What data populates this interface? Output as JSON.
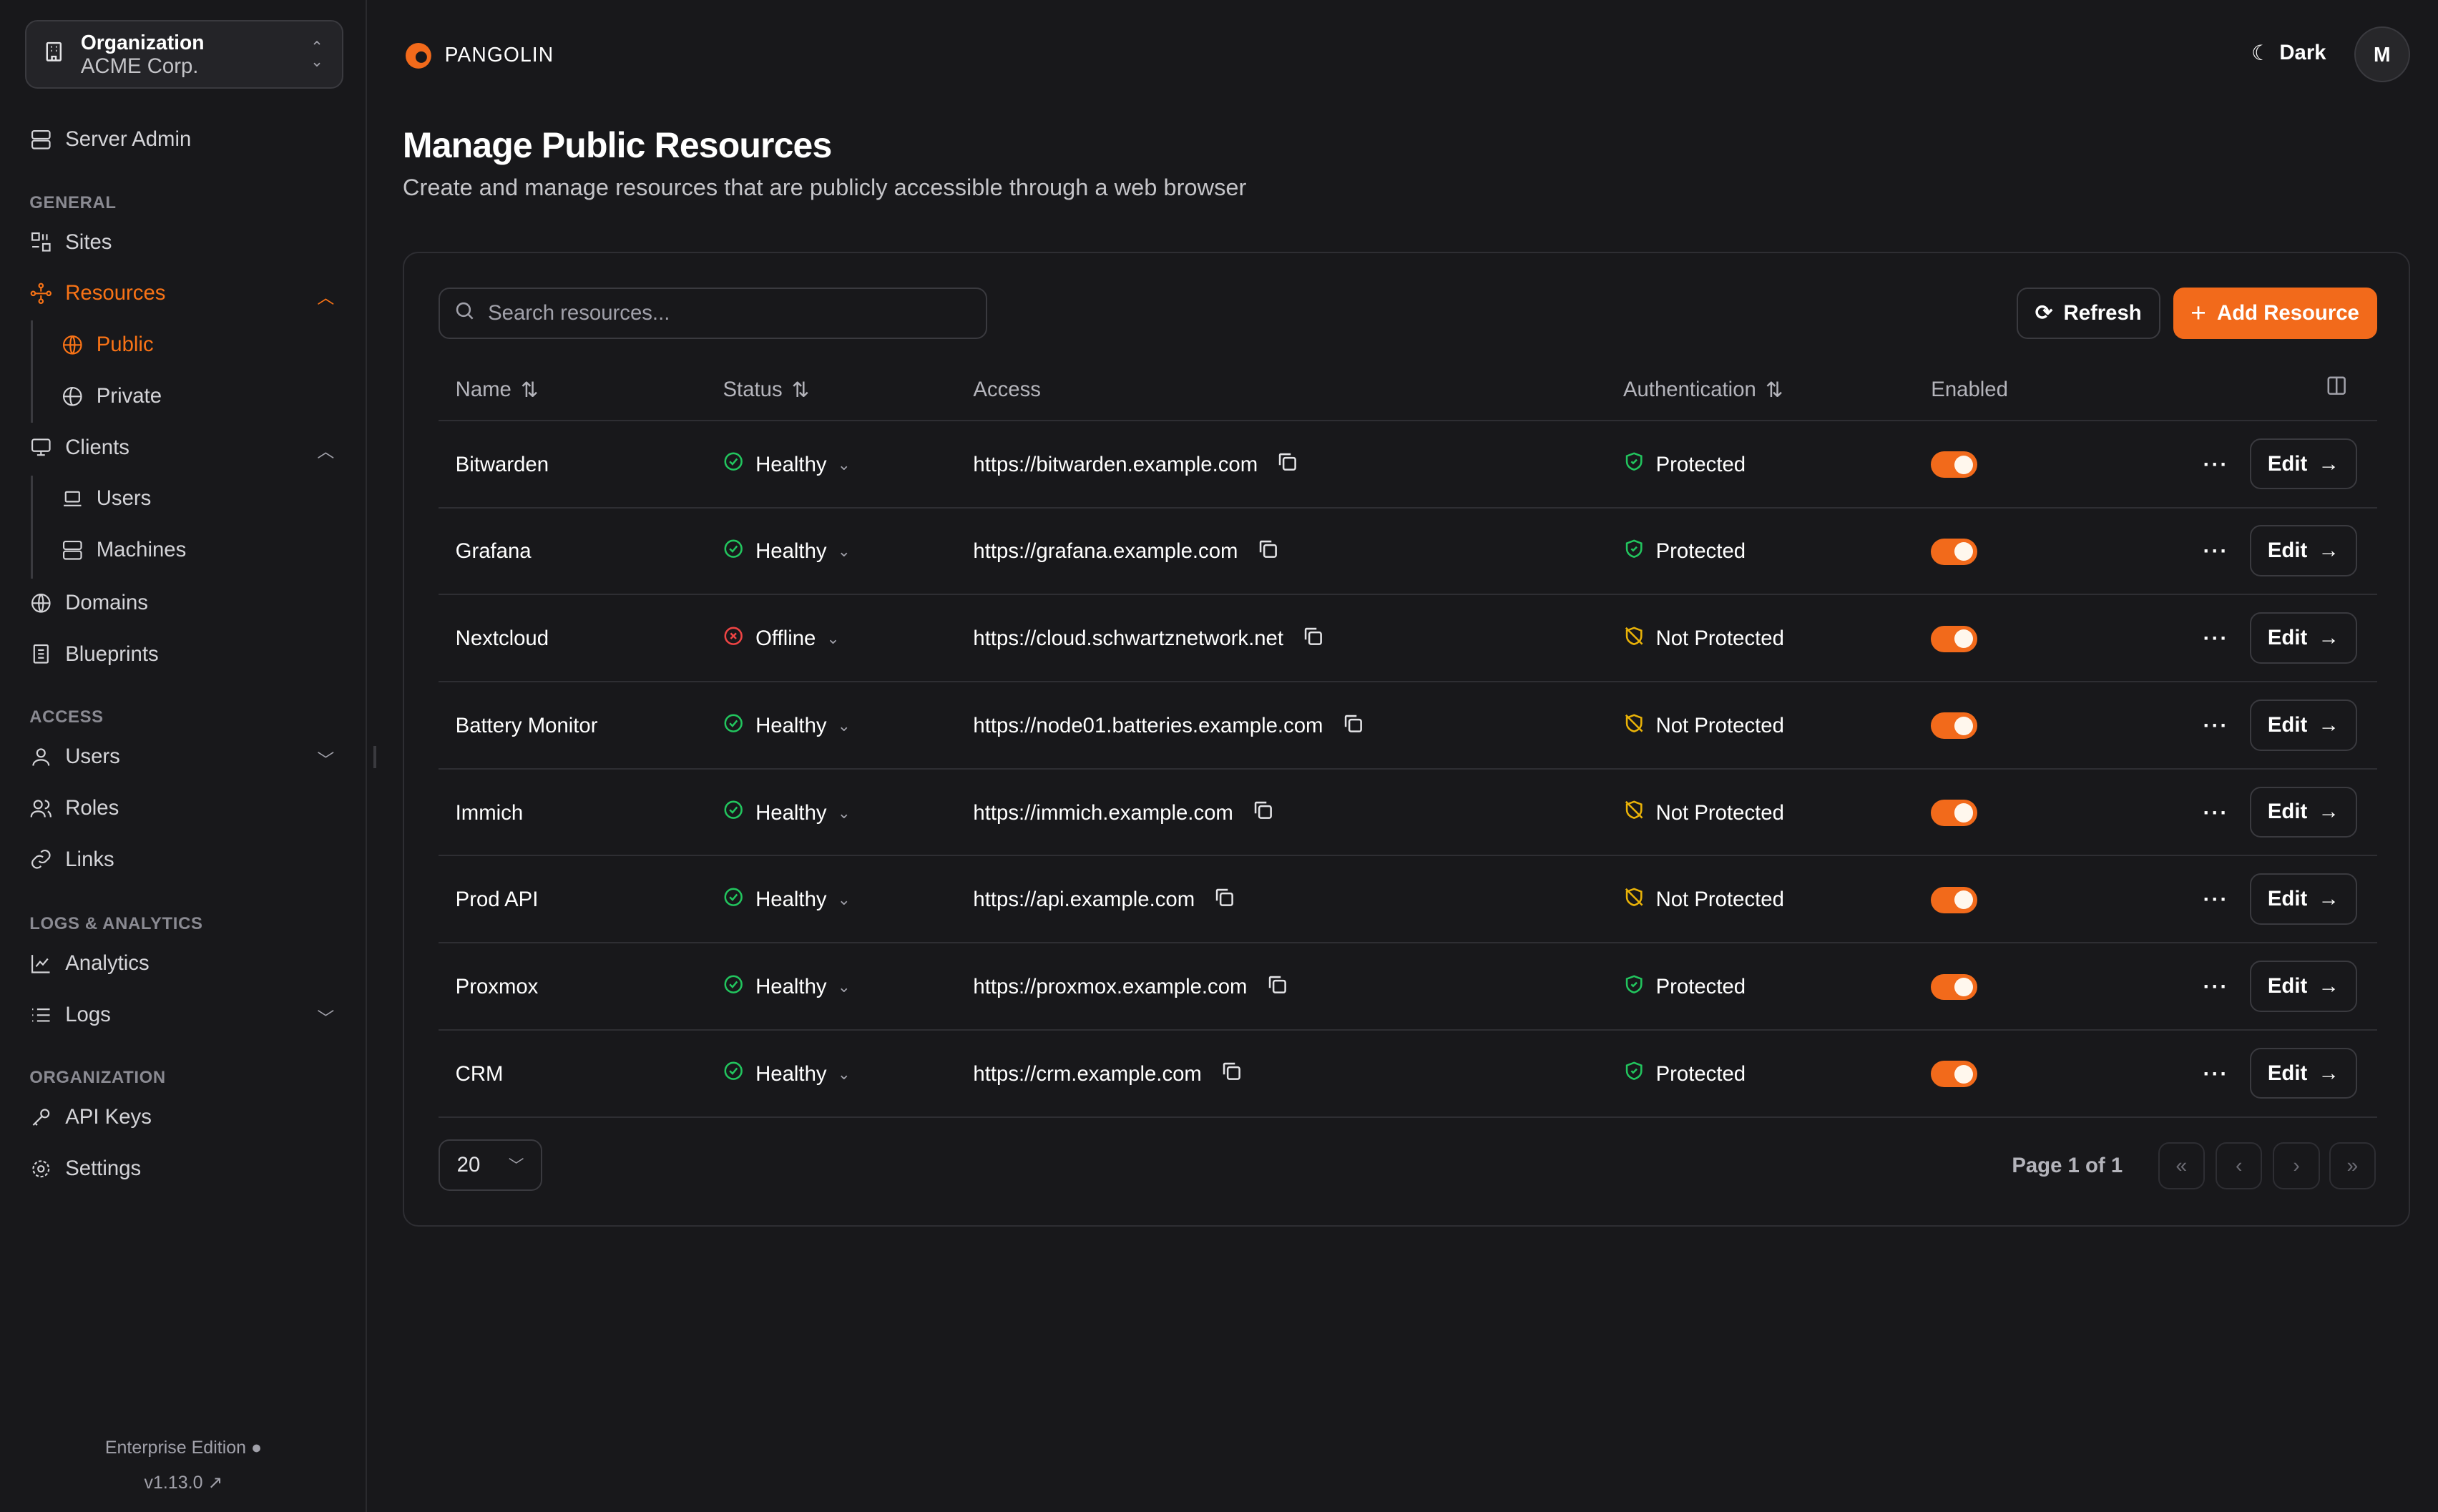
{
  "sidebar": {
    "org": {
      "label": "Organization",
      "name": "ACME Corp."
    },
    "server_admin": "Server Admin",
    "sections": {
      "general": "GENERAL",
      "access": "ACCESS",
      "logs": "LOGS & ANALYTICS",
      "organization": "ORGANIZATION"
    },
    "items": {
      "sites": "Sites",
      "resources": "Resources",
      "public": "Public",
      "private": "Private",
      "clients": "Clients",
      "users": "Users",
      "machines": "Machines",
      "domains": "Domains",
      "blueprints": "Blueprints",
      "access_users": "Users",
      "roles": "Roles",
      "links": "Links",
      "analytics": "Analytics",
      "logs": "Logs",
      "api_keys": "API Keys",
      "settings": "Settings"
    },
    "edition": "Enterprise Edition",
    "version": "v1.13.0"
  },
  "header": {
    "brand": "PANGOLIN",
    "theme": "Dark",
    "avatar": "M"
  },
  "page": {
    "title": "Manage Public Resources",
    "subtitle": "Create and manage resources that are publicly accessible through a web browser"
  },
  "toolbar": {
    "search_placeholder": "Search resources...",
    "refresh": "Refresh",
    "add": "Add Resource"
  },
  "columns": {
    "name": "Name",
    "status": "Status",
    "access": "Access",
    "auth": "Authentication",
    "enabled": "Enabled"
  },
  "rows": [
    {
      "name": "Bitwarden",
      "status": "Healthy",
      "access": "https://bitwarden.example.com",
      "auth": "Protected",
      "enabled": true,
      "edit": "Edit"
    },
    {
      "name": "Grafana",
      "status": "Healthy",
      "access": "https://grafana.example.com",
      "auth": "Protected",
      "enabled": true,
      "edit": "Edit"
    },
    {
      "name": "Nextcloud",
      "status": "Offline",
      "access": "https://cloud.schwartznetwork.net",
      "auth": "Not Protected",
      "enabled": true,
      "edit": "Edit"
    },
    {
      "name": "Battery Monitor",
      "status": "Healthy",
      "access": "https://node01.batteries.example.com",
      "auth": "Not Protected",
      "enabled": true,
      "edit": "Edit"
    },
    {
      "name": "Immich",
      "status": "Healthy",
      "access": "https://immich.example.com",
      "auth": "Not Protected",
      "enabled": true,
      "edit": "Edit"
    },
    {
      "name": "Prod API",
      "status": "Healthy",
      "access": "https://api.example.com",
      "auth": "Not Protected",
      "enabled": true,
      "edit": "Edit"
    },
    {
      "name": "Proxmox",
      "status": "Healthy",
      "access": "https://proxmox.example.com",
      "auth": "Protected",
      "enabled": true,
      "edit": "Edit"
    },
    {
      "name": "CRM",
      "status": "Healthy",
      "access": "https://crm.example.com",
      "auth": "Protected",
      "enabled": true,
      "edit": "Edit"
    }
  ],
  "pagination": {
    "page_size": "20",
    "info": "Page 1 of 1"
  },
  "colors": {
    "accent": "#f26a1b",
    "healthy": "#22c55e",
    "offline": "#ef4444",
    "not_protected": "#eab308",
    "background": "#18181b"
  }
}
